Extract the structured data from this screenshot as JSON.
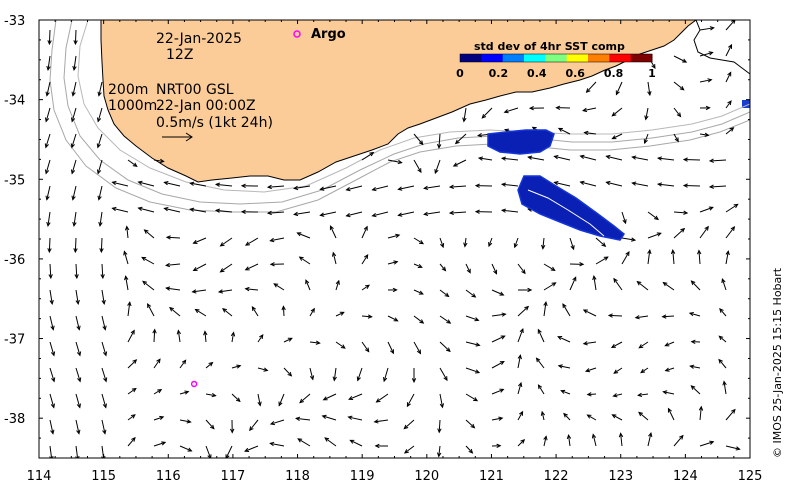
{
  "map": {
    "x_ticks": [
      "114",
      "115",
      "116",
      "117",
      "118",
      "119",
      "120",
      "121",
      "122",
      "123",
      "124",
      "125"
    ],
    "y_ticks": [
      "-33",
      "-34",
      "-35",
      "-36",
      "-37",
      "-38"
    ],
    "lon_range": [
      114,
      125
    ],
    "lat_range": [
      -38.5,
      -33
    ],
    "colors": {
      "land": "#FBCB98",
      "coast": "#000000",
      "isobath": "#a8a8a8",
      "argo": "#ff00ff",
      "sst_patch": "#0a1fb4"
    }
  },
  "annotations": {
    "date": "22-Jan-2025",
    "hour": "12Z",
    "depth_200": "200m",
    "depth_1000": "1000m",
    "product": "NRT00 GSL",
    "product_time": "22-Jan 00:00Z",
    "scale_label": "0.5m/s (1kt 24h)",
    "argo_label": "Argo",
    "credit": "© IMOS 25-Jan-2025 15:15 Hobart"
  },
  "colorbar": {
    "title": "std dev of 4hr SST comp",
    "ticks": [
      "0",
      "0.2",
      "0.4",
      "0.6",
      "0.8",
      "1"
    ],
    "range": [
      0,
      1
    ],
    "colors": [
      "#00007f",
      "#0000ff",
      "#007fff",
      "#00ffff",
      "#7fff7f",
      "#ffff00",
      "#ff7f00",
      "#ff0000",
      "#7f0000"
    ]
  },
  "argo_floats": [
    {
      "lon": 118.0,
      "lat": -33.15
    },
    {
      "lon": 116.4,
      "lat": -37.57
    }
  ],
  "scale_vector_ms": 0.5
}
